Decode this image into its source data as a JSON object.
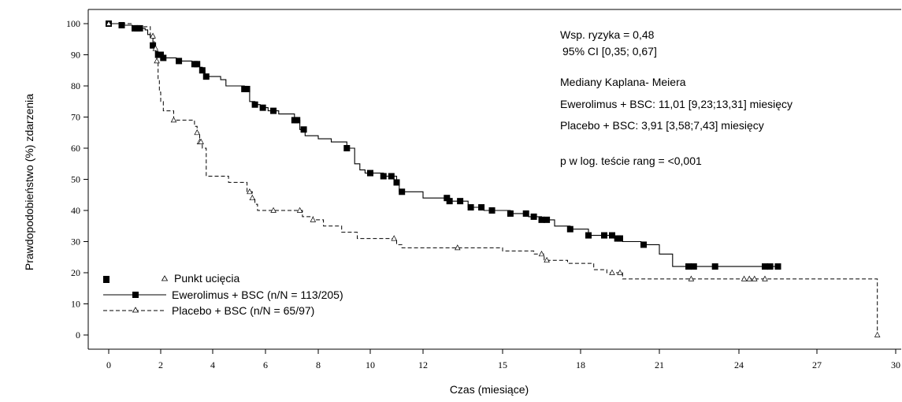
{
  "chart_data": {
    "type": "line",
    "xlabel": "Czas (miesiące)",
    "ylabel": "Prawdopodobieństwo (%) zdarzenia",
    "xlim": [
      -0.7,
      30
    ],
    "ylim": [
      -2,
      103
    ],
    "xticks": [
      0,
      2,
      4,
      6,
      8,
      10,
      12,
      15,
      18,
      21,
      24,
      27,
      30
    ],
    "xtick_labels": [
      "0",
      "2",
      "4",
      "6",
      "8",
      "10",
      "12",
      "15",
      "18",
      "21",
      "24",
      "27",
      "30"
    ],
    "yticks": [
      0,
      10,
      20,
      30,
      40,
      50,
      60,
      70,
      80,
      90,
      100
    ],
    "ytick_labels": [
      "0",
      "10",
      "20",
      "30",
      "40",
      "50",
      "60",
      "70",
      "80",
      "90",
      "100"
    ],
    "grid": false,
    "legend_position": "bottom-left",
    "legend": {
      "censor_label": "Punkt ucięcia",
      "entries": [
        "Ewerolimus + BSC (n/N = 113/205)",
        "Placebo + BSC (n/N = 65/97)"
      ]
    },
    "annotations": [
      "Wsp. ryzyka = 0,48",
      "95% CI [0,35; 0,67]",
      "Mediany Kaplana- Meiera",
      "Ewerolimus + BSC: 11,01 [9,23;13,31] miesięcy",
      "Placebo + BSC: 3,91 [3,58;7,43] miesięcy",
      "p w log. teście rang = <0,001"
    ],
    "series": [
      {
        "name": "Ewerolimus + BSC (n/N = 113/205)",
        "style": "solid",
        "marker": "square",
        "color": "#000000",
        "steps": [
          [
            0,
            100
          ],
          [
            0.5,
            99.5
          ],
          [
            0.9,
            98.5
          ],
          [
            1.4,
            98
          ],
          [
            1.5,
            96.5
          ],
          [
            1.6,
            95.5
          ],
          [
            1.7,
            93
          ],
          [
            1.8,
            91
          ],
          [
            1.9,
            90
          ],
          [
            2.1,
            89
          ],
          [
            2.6,
            88
          ],
          [
            3.2,
            87
          ],
          [
            3.5,
            86
          ],
          [
            3.6,
            85
          ],
          [
            3.7,
            83
          ],
          [
            4.3,
            82
          ],
          [
            4.5,
            80
          ],
          [
            5.1,
            80
          ],
          [
            5.2,
            79
          ],
          [
            5.4,
            75
          ],
          [
            5.6,
            74
          ],
          [
            5.8,
            73
          ],
          [
            6.1,
            72
          ],
          [
            6.5,
            71
          ],
          [
            7.1,
            69
          ],
          [
            7.3,
            66
          ],
          [
            7.5,
            64
          ],
          [
            8.0,
            63
          ],
          [
            8.5,
            62
          ],
          [
            9.1,
            60
          ],
          [
            9.4,
            55
          ],
          [
            9.6,
            53
          ],
          [
            9.8,
            52
          ],
          [
            10.5,
            51
          ],
          [
            11.0,
            49
          ],
          [
            11.1,
            46
          ],
          [
            12.0,
            44
          ],
          [
            13.0,
            43
          ],
          [
            13.7,
            41
          ],
          [
            14.3,
            40
          ],
          [
            15.3,
            39
          ],
          [
            16.0,
            38
          ],
          [
            16.5,
            37
          ],
          [
            17.0,
            35
          ],
          [
            17.6,
            34
          ],
          [
            18.3,
            32
          ],
          [
            19.3,
            31
          ],
          [
            19.6,
            30
          ],
          [
            20.3,
            29
          ],
          [
            21.0,
            26
          ],
          [
            21.5,
            22
          ],
          [
            22.3,
            22
          ],
          [
            23.0,
            22
          ],
          [
            25.5,
            22
          ]
        ],
        "censor_x": [
          0,
          0.5,
          1.0,
          1.1,
          1.2,
          1.7,
          1.9,
          2.0,
          2.1,
          2.7,
          3.3,
          3.4,
          3.6,
          3.75,
          5.2,
          5.3,
          5.6,
          5.9,
          6.3,
          7.1,
          7.2,
          7.45,
          9.1,
          10.0,
          10.5,
          10.8,
          11.0,
          11.2,
          12.9,
          13.0,
          13.4,
          13.8,
          14.2,
          14.6,
          15.3,
          15.9,
          16.2,
          16.5,
          16.7,
          17.6,
          18.3,
          18.9,
          19.2,
          19.4,
          19.5,
          20.4,
          22.1,
          22.3,
          23.1,
          25.0,
          25.2,
          25.5
        ]
      },
      {
        "name": "Placebo + BSC (n/N = 65/97)",
        "style": "dashed",
        "marker": "triangle",
        "color": "#000000",
        "steps": [
          [
            0,
            100
          ],
          [
            0.9,
            99
          ],
          [
            1.6,
            96
          ],
          [
            1.75,
            92
          ],
          [
            1.85,
            88
          ],
          [
            1.9,
            82
          ],
          [
            1.95,
            78
          ],
          [
            2.0,
            75
          ],
          [
            2.1,
            72
          ],
          [
            2.5,
            69
          ],
          [
            3.3,
            67
          ],
          [
            3.4,
            65
          ],
          [
            3.5,
            62
          ],
          [
            3.6,
            60
          ],
          [
            3.75,
            51
          ],
          [
            4.6,
            49
          ],
          [
            5.3,
            46
          ],
          [
            5.5,
            44
          ],
          [
            5.6,
            42
          ],
          [
            5.7,
            40
          ],
          [
            7.4,
            38
          ],
          [
            7.8,
            37
          ],
          [
            8.2,
            35
          ],
          [
            8.9,
            33
          ],
          [
            9.5,
            31
          ],
          [
            11.0,
            29
          ],
          [
            11.2,
            28
          ],
          [
            15.0,
            27
          ],
          [
            16.2,
            26
          ],
          [
            16.6,
            24
          ],
          [
            17.5,
            23
          ],
          [
            18.5,
            21
          ],
          [
            19.0,
            20
          ],
          [
            19.6,
            18
          ],
          [
            29.3,
            18
          ],
          [
            29.3,
            0
          ]
        ],
        "censor_x": [
          0,
          1.7,
          1.8,
          1.85,
          2.5,
          3.4,
          3.5,
          3.55,
          5.4,
          5.5,
          6.3,
          7.3,
          7.8,
          10.9,
          13.3,
          16.5,
          16.7,
          19.2,
          19.5,
          22.2,
          24.2,
          24.4,
          24.6,
          25.0,
          29.3
        ]
      }
    ]
  }
}
